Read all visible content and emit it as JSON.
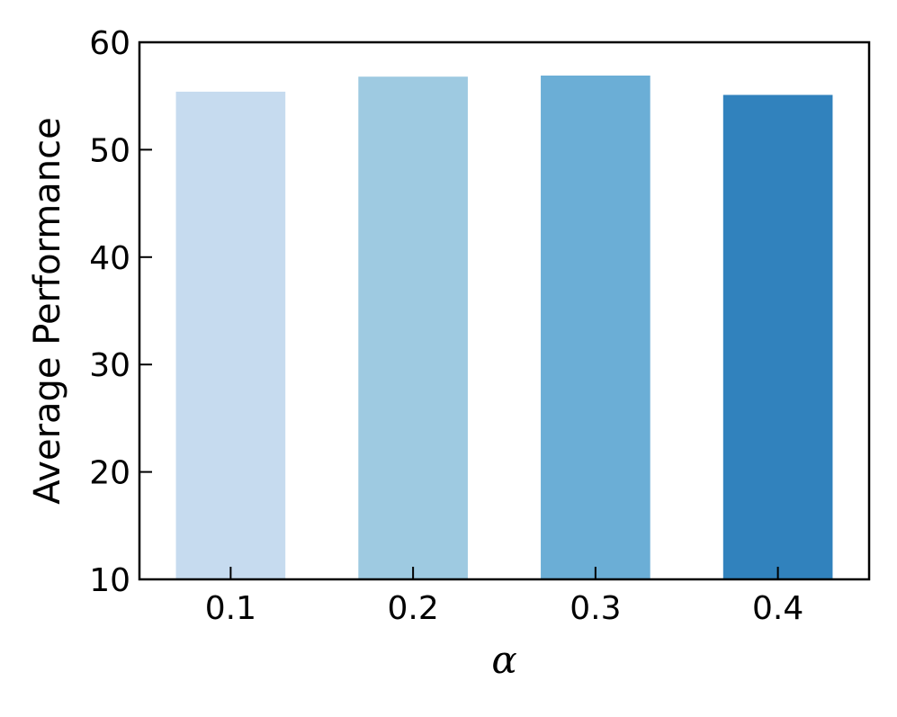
{
  "chart_data": {
    "type": "bar",
    "categories": [
      "0.1",
      "0.2",
      "0.3",
      "0.4"
    ],
    "values": [
      55.4,
      56.8,
      56.9,
      55.1
    ],
    "colors": [
      "#c6dbef",
      "#9ecae1",
      "#6baed6",
      "#3182bd"
    ],
    "xlabel": "α",
    "ylabel": "Average Performance",
    "ylim": [
      10,
      60
    ],
    "yticks": [
      10,
      20,
      30,
      40,
      50,
      60
    ],
    "grid": false,
    "legend": "none"
  }
}
